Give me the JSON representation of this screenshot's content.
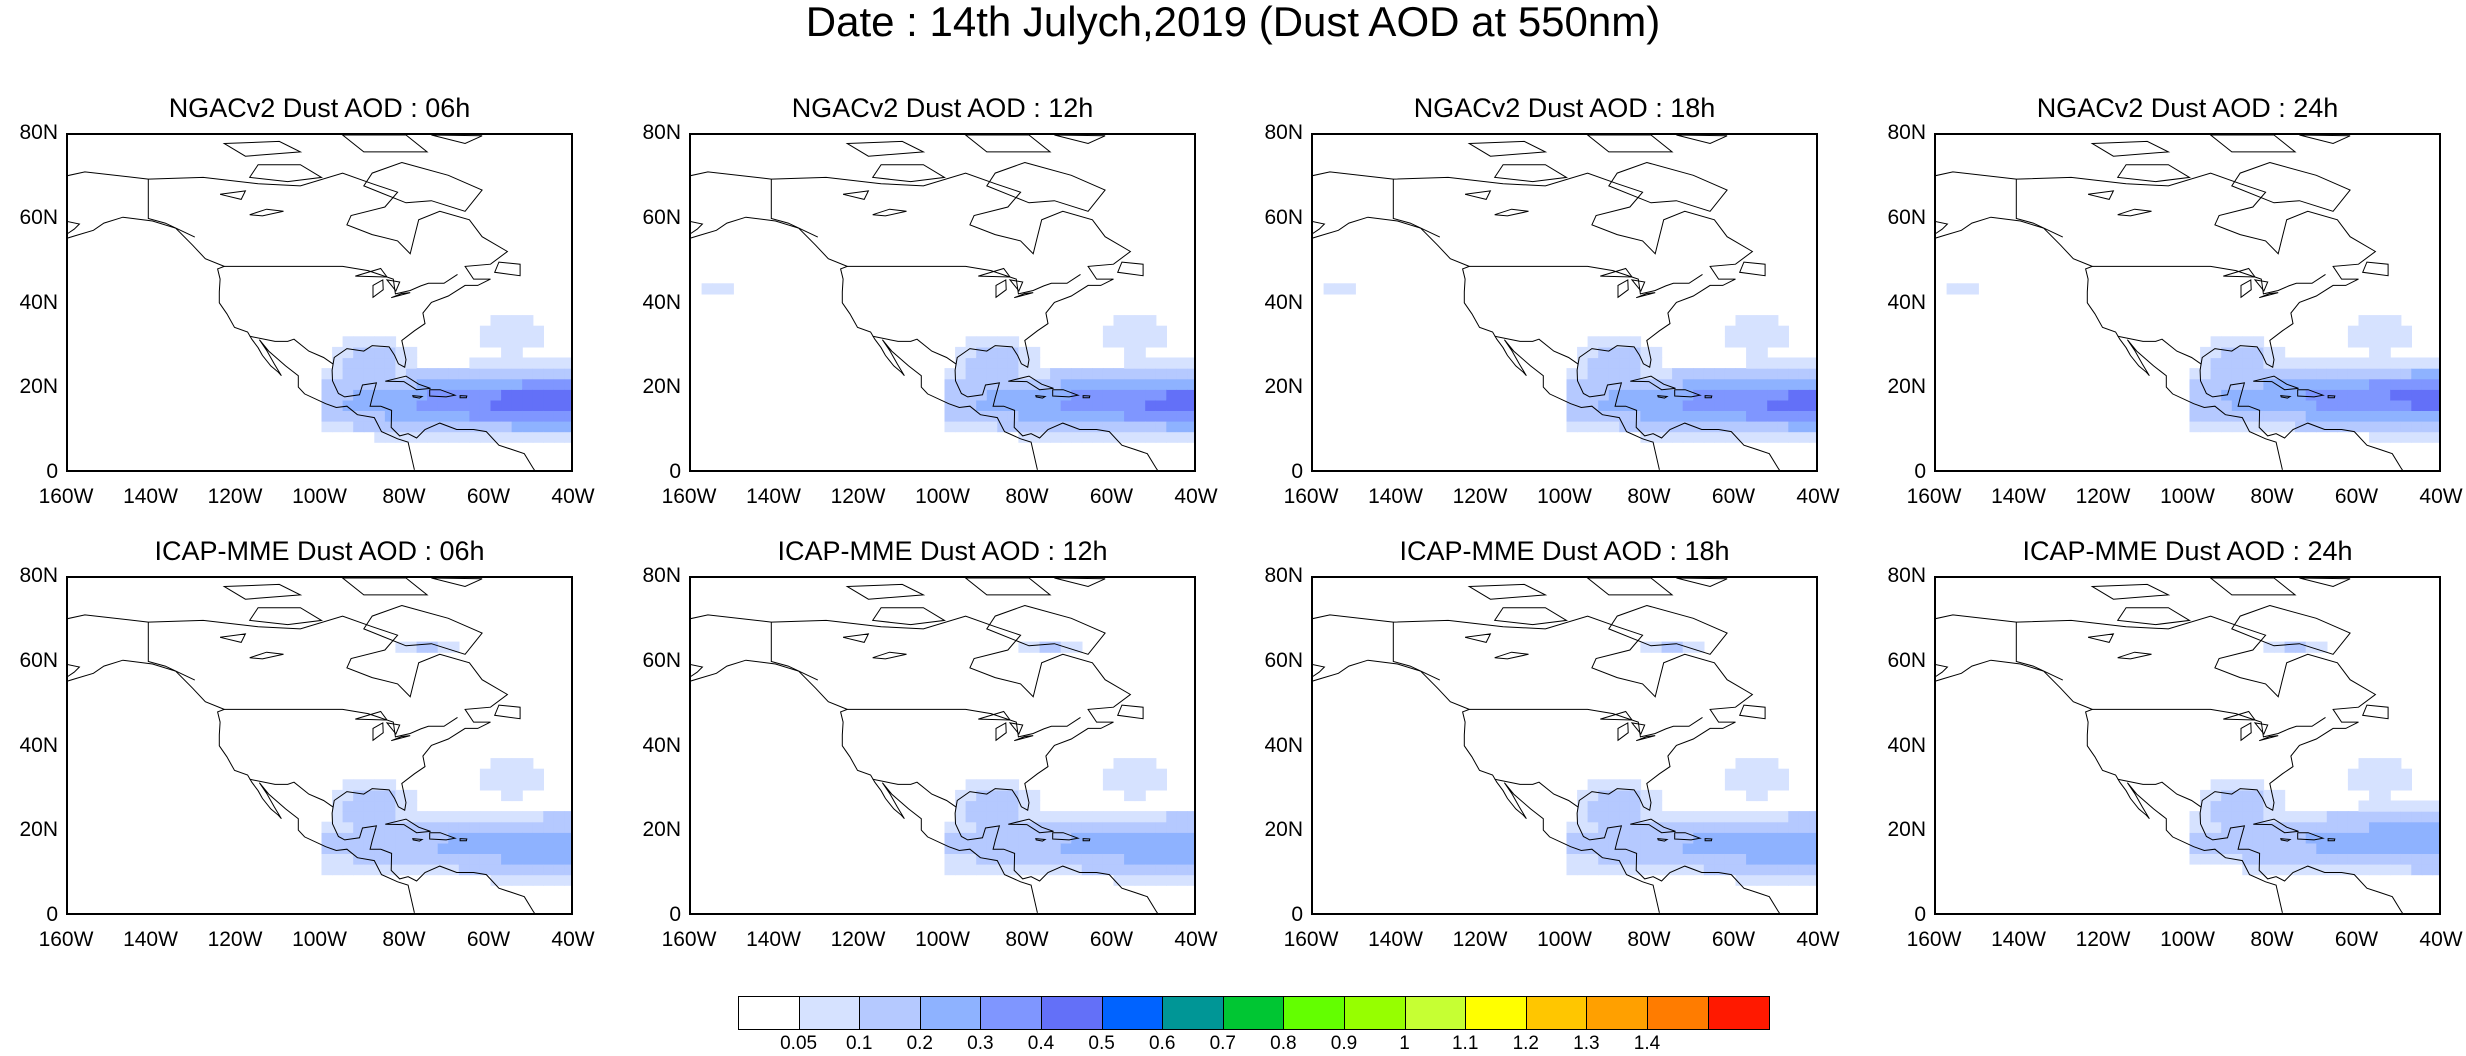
{
  "title": "Date : 14th Julych,2019 (Dust AOD at 550nm)",
  "panels": [
    {
      "title": "NGACv2 Dust AOD : 06h",
      "model": "NGACv2",
      "hour": "06h",
      "peak_aod": 0.5,
      "saharan_plume_extent_lon": [
        -100,
        -40
      ],
      "plume_center_lat": 17
    },
    {
      "title": "NGACv2 Dust AOD : 12h",
      "model": "NGACv2",
      "hour": "12h",
      "peak_aod": 0.45,
      "saharan_plume_extent_lon": [
        -100,
        -40
      ],
      "plume_center_lat": 17
    },
    {
      "title": "NGACv2 Dust AOD : 18h",
      "model": "NGACv2",
      "hour": "18h",
      "peak_aod": 0.45,
      "saharan_plume_extent_lon": [
        -100,
        -40
      ],
      "plume_center_lat": 17
    },
    {
      "title": "NGACv2 Dust AOD : 24h",
      "model": "NGACv2",
      "hour": "24h",
      "peak_aod": 0.45,
      "saharan_plume_extent_lon": [
        -100,
        -40
      ],
      "plume_center_lat": 18
    },
    {
      "title": "ICAP-MME Dust AOD : 06h",
      "model": "ICAP-MME",
      "hour": "06h",
      "peak_aod": 0.3,
      "saharan_plume_extent_lon": [
        -100,
        -40
      ],
      "plume_center_lat": 17
    },
    {
      "title": "ICAP-MME Dust AOD : 12h",
      "model": "ICAP-MME",
      "hour": "12h",
      "peak_aod": 0.3,
      "saharan_plume_extent_lon": [
        -100,
        -40
      ],
      "plume_center_lat": 17
    },
    {
      "title": "ICAP-MME Dust AOD : 18h",
      "model": "ICAP-MME",
      "hour": "18h",
      "peak_aod": 0.3,
      "saharan_plume_extent_lon": [
        -100,
        -40
      ],
      "plume_center_lat": 17
    },
    {
      "title": "ICAP-MME Dust AOD : 24h",
      "model": "ICAP-MME",
      "hour": "24h",
      "peak_aod": 0.3,
      "saharan_plume_extent_lon": [
        -100,
        -40
      ],
      "plume_center_lat": 18
    }
  ],
  "axes": {
    "lat_ticks": [
      "80N",
      "60N",
      "40N",
      "20N",
      "0"
    ],
    "lon_ticks": [
      "160W",
      "140W",
      "120W",
      "100W",
      "80W",
      "60W",
      "40W"
    ],
    "lat_range": [
      0,
      80
    ],
    "lon_range": [
      -160,
      -40
    ]
  },
  "colorbar": {
    "colors": [
      "#ffffff",
      "#d6e2ff",
      "#b5c9ff",
      "#8eb2ff",
      "#7f96ff",
      "#6370f8",
      "#0063ff",
      "#009696",
      "#00c633",
      "#63ff00",
      "#96ff00",
      "#c6ff33",
      "#ffff00",
      "#ffc600",
      "#ffa000",
      "#ff7c00",
      "#ff1900"
    ],
    "labels": [
      "0.05",
      "0.1",
      "0.2",
      "0.3",
      "0.4",
      "0.5",
      "0.6",
      "0.7",
      "0.8",
      "0.9",
      "1",
      "1.1",
      "1.2",
      "1.3",
      "1.4"
    ]
  }
}
